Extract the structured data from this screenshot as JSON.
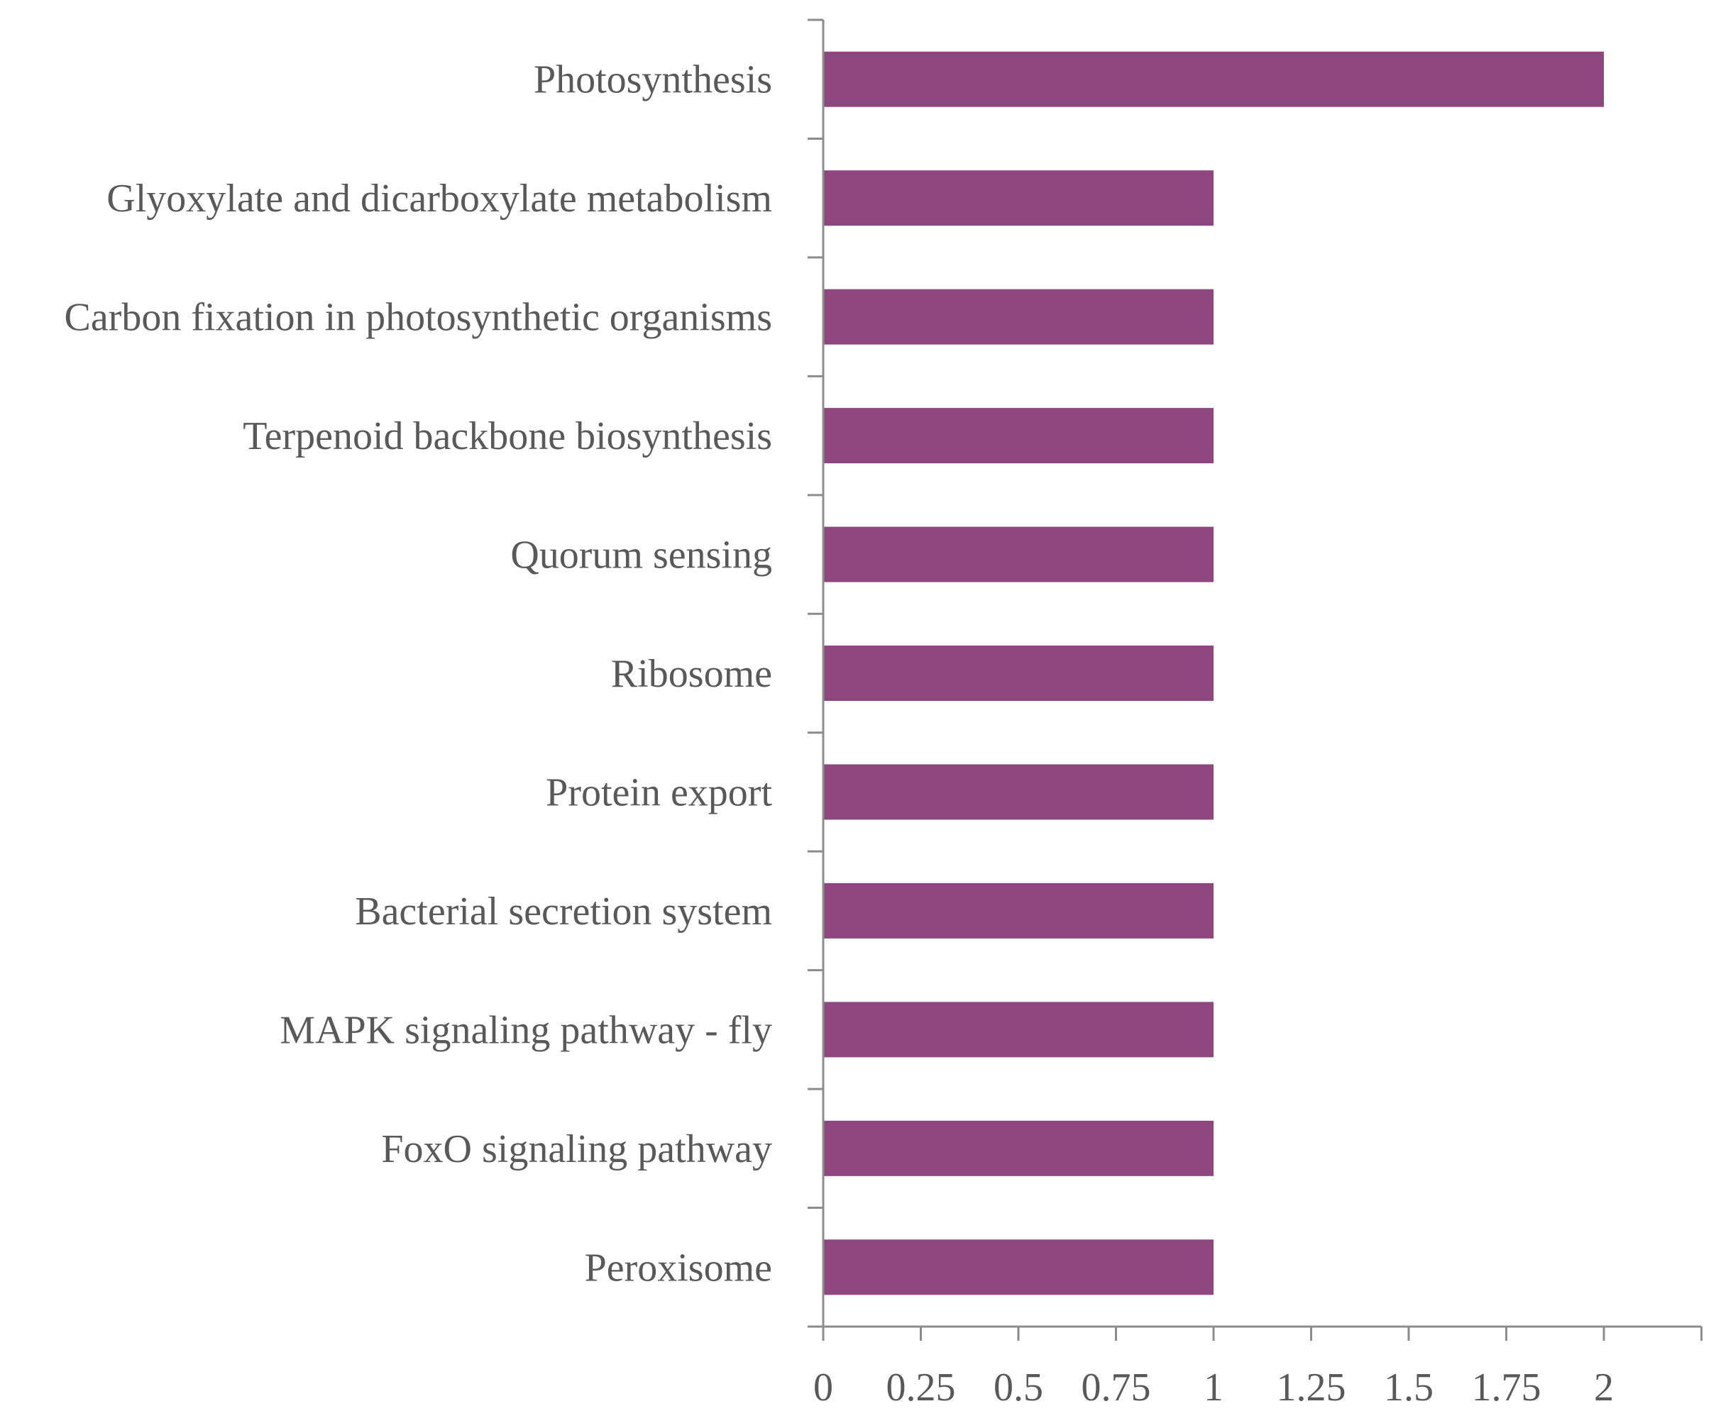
{
  "chart_data": {
    "type": "bar",
    "orientation": "horizontal",
    "categories": [
      "Photosynthesis",
      "Glyoxylate and dicarboxylate metabolism",
      "Carbon fixation in photosynthetic organisms",
      "Terpenoid backbone biosynthesis",
      "Quorum sensing",
      "Ribosome",
      "Protein export",
      "Bacterial secretion system",
      "MAPK signaling pathway - fly",
      "FoxO signaling pathway",
      "Peroxisome"
    ],
    "values": [
      2,
      1,
      1,
      1,
      1,
      1,
      1,
      1,
      1,
      1,
      1
    ],
    "x_ticks": [
      "0",
      "0.25",
      "0.5",
      "0.75",
      "1",
      "1.25",
      "1.5",
      "1.75",
      "2"
    ],
    "xlim": [
      0,
      2.25
    ],
    "title": "",
    "xlabel": "",
    "ylabel": "",
    "grid": false,
    "legend": "none",
    "bar_color": "#8e467f",
    "axis_color": "#8c8c8c",
    "label_color": "#595959"
  }
}
